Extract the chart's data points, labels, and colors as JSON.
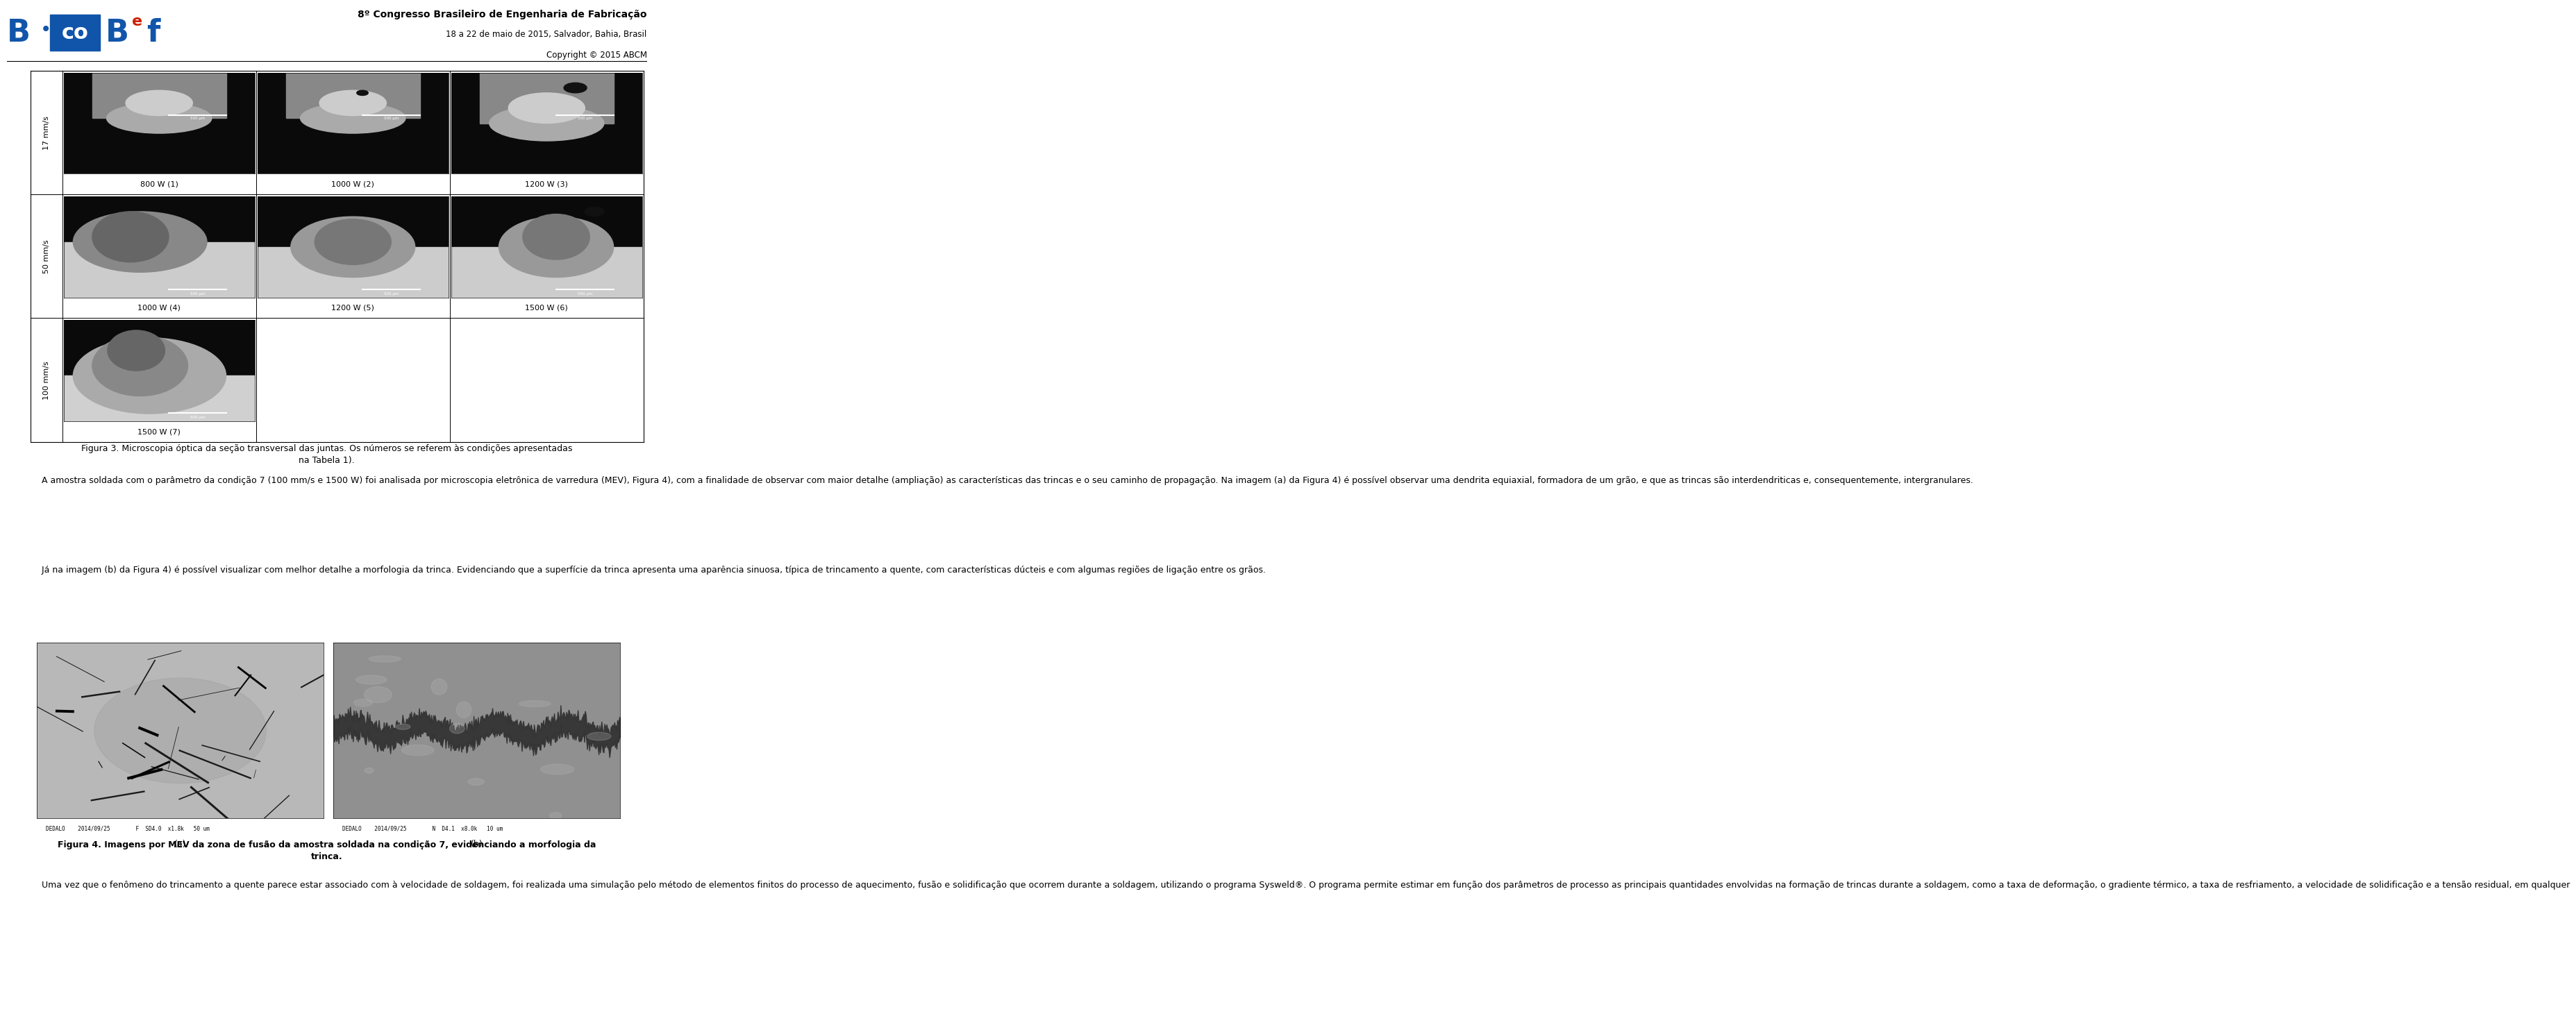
{
  "header_title": "8º Congresso Brasileiro de Engenharia de Fabricação",
  "header_line2": "18 a 22 de maio de 2015, Salvador, Bahia, Brasil",
  "header_line3": "Copyright © 2015 ABCM",
  "fig3_caption": "Figura 3. Microscopia óptica da seção transversal das juntas. Os números se referem às condições apresentadas\nna Tabela 1).",
  "fig4_caption": "Figura 4. Imagens por MEV da zona de fusão da amostra soldada na condição 7, evidenciando a morfologia da\ntrinca.",
  "row_labels": [
    "17 mm/s",
    "50 mm/s",
    "100 mm/s"
  ],
  "cell_labels": [
    [
      "800 W (1)",
      "1000 W (2)",
      "1200 W (3)"
    ],
    [
      "1000 W (4)",
      "1200 W (5)",
      "1500 W (6)"
    ],
    [
      "1500 W (7)",
      "",
      ""
    ]
  ],
  "mev_label_a": "(a)",
  "mev_label_b": "(b)",
  "mev_bottom_a": "DEDALO    2014/09/25        F  SD4.0  x1.8k   50 um",
  "mev_bottom_b": "DEDALO    2014/09/25        N  D4.1  x8.0k   10 um",
  "paragraph1": "    A amostra soldada com o parâmetro da condição 7 (100 mm/s e 1500 W) foi analisada por microscopia eletrônica de varredura (MEV), Figura 4), com a finalidade de observar com maior detalhe (ampliação) as características das trincas e o seu caminho de propagação. Na imagem (a) da Figura 4) é possível observar uma dendrita equiaxial, formadora de um grão, e que as trincas são interdendriticas e, consequentemente, intergranulares.",
  "paragraph2": "    Já na imagem (b) da Figura 4) é possível visualizar com melhor detalhe a morfologia da trinca. Evidenciando que a superfície da trinca apresenta uma aparência sinuosa, típica de trincamento a quente, com características dúcteis e com algumas regiões de ligação entre os grãos.",
  "paragraph3": "    Uma vez que o fenômeno do trincamento a quente parece estar associado com à velocidade de soldagem, foi realizada uma simulação pelo método de elementos finitos do processo de aquecimento, fusão e solidificação que ocorrem durante a soldagem, utilizando o programa Sysweld®. O programa permite estimar em função dos parâmetros de processo as principais quantidades envolvidas na formação de trincas durante a soldagem, como a taxa de deformação, o gradiente térmico, a taxa de resfriamento, a velocidade de solidificação e a tensão residual, em qualquer",
  "background_color": "#ffffff"
}
